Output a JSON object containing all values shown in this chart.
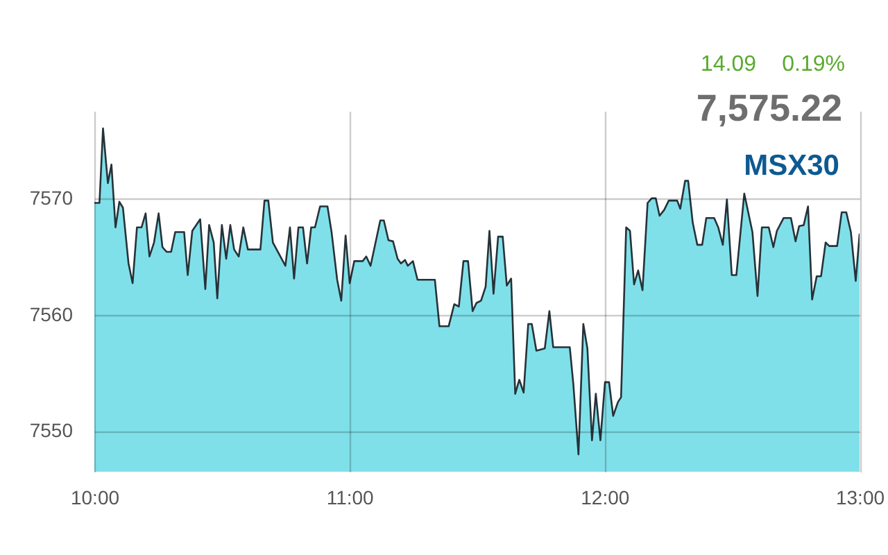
{
  "chart_data": {
    "type": "area",
    "title": "MSX30",
    "subtitle": "7,575.22",
    "annotations": [
      "14.09",
      "0.19%"
    ],
    "color": "#80e0ea",
    "x": [
      10.0,
      10.02,
      10.034,
      10.053,
      10.067,
      10.083,
      10.098,
      10.112,
      10.134,
      10.15,
      10.167,
      10.185,
      10.201,
      10.216,
      10.234,
      10.252,
      10.267,
      10.283,
      10.301,
      10.317,
      10.352,
      10.366,
      10.384,
      10.415,
      10.435,
      10.45,
      10.468,
      10.482,
      10.5,
      10.517,
      10.533,
      10.548,
      10.566,
      10.584,
      10.602,
      10.651,
      10.667,
      10.682,
      10.7,
      10.749,
      10.767,
      10.783,
      10.8,
      10.818,
      10.834,
      10.85,
      10.865,
      10.885,
      10.914,
      10.93,
      10.952,
      10.968,
      10.985,
      11.001,
      11.019,
      11.052,
      11.066,
      11.083,
      11.121,
      11.135,
      11.153,
      11.171,
      11.189,
      11.202,
      11.218,
      11.229,
      11.249,
      11.267,
      11.335,
      11.353,
      11.389,
      11.411,
      11.429,
      11.447,
      11.465,
      11.483,
      11.498,
      11.516,
      11.534,
      11.549,
      11.565,
      11.583,
      11.601,
      11.617,
      11.634,
      11.65,
      11.666,
      11.683,
      11.701,
      11.715,
      11.733,
      11.766,
      11.784,
      11.799,
      11.864,
      11.878,
      11.898,
      11.917,
      11.933,
      11.951,
      11.966,
      11.984,
      12.002,
      12.018,
      12.034,
      12.053,
      12.065,
      12.085,
      12.1,
      12.116,
      12.132,
      12.149,
      12.169,
      12.185,
      12.201,
      12.216,
      12.234,
      12.252,
      12.285,
      12.297,
      12.316,
      12.328,
      12.346,
      12.364,
      12.383,
      12.399,
      12.43,
      12.446,
      12.464,
      12.48,
      12.499,
      12.517,
      12.548,
      12.58,
      12.6,
      12.617,
      12.644,
      12.662,
      12.676,
      12.702,
      12.731,
      12.749,
      12.763,
      12.781,
      12.798,
      12.814,
      12.832,
      12.849,
      12.867,
      12.881,
      12.912,
      12.93,
      12.948,
      12.966,
      12.985,
      13.0
    ],
    "values": [
      7569.6,
      7569.6,
      7576.0,
      7571.3,
      7572.9,
      7567.5,
      7569.7,
      7569.2,
      7564.4,
      7562.7,
      7567.5,
      7567.5,
      7568.7,
      7565.0,
      7566.2,
      7568.7,
      7565.8,
      7565.4,
      7565.4,
      7567.1,
      7567.1,
      7563.4,
      7567.2,
      7568.2,
      7562.2,
      7567.7,
      7566.2,
      7561.4,
      7567.7,
      7564.8,
      7567.7,
      7565.6,
      7565.0,
      7567.5,
      7565.6,
      7565.6,
      7569.8,
      7569.8,
      7566.2,
      7564.2,
      7567.5,
      7563.1,
      7567.5,
      7567.5,
      7564.4,
      7567.5,
      7567.5,
      7569.3,
      7569.3,
      7567.1,
      7563.0,
      7561.2,
      7566.8,
      7562.7,
      7564.6,
      7564.6,
      7565.0,
      7564.2,
      7568.1,
      7568.1,
      7566.4,
      7566.3,
      7564.8,
      7564.4,
      7564.7,
      7564.2,
      7564.6,
      7563.0,
      7563.0,
      7559.0,
      7559.0,
      7560.9,
      7560.7,
      7564.6,
      7564.6,
      7560.3,
      7561.0,
      7561.2,
      7562.4,
      7567.2,
      7561.8,
      7566.7,
      7566.7,
      7562.5,
      7563.1,
      7553.2,
      7554.4,
      7553.3,
      7559.2,
      7559.2,
      7556.9,
      7557.1,
      7560.3,
      7557.2,
      7557.2,
      7554.0,
      7548.0,
      7559.2,
      7557.1,
      7549.2,
      7553.2,
      7549.2,
      7554.2,
      7554.2,
      7551.3,
      7552.5,
      7552.9,
      7567.5,
      7567.2,
      7562.6,
      7563.8,
      7562.1,
      7569.6,
      7570.0,
      7570.0,
      7568.5,
      7569.0,
      7569.8,
      7569.8,
      7569.1,
      7571.5,
      7571.5,
      7567.9,
      7566.0,
      7566.0,
      7568.3,
      7568.3,
      7567.5,
      7566.0,
      7569.9,
      7563.4,
      7563.4,
      7570.4,
      7567.1,
      7561.6,
      7567.5,
      7567.5,
      7565.8,
      7567.2,
      7568.3,
      7568.3,
      7566.3,
      7567.6,
      7567.7,
      7569.3,
      7561.3,
      7563.3,
      7563.3,
      7566.2,
      7565.9,
      7565.9,
      7568.8,
      7568.8,
      7567.1,
      7562.9,
      7566.9
    ],
    "xlim": [
      10,
      13
    ],
    "xticks": [
      {
        "value": 10,
        "label": "10:00"
      },
      {
        "value": 11,
        "label": "11:00"
      },
      {
        "value": 12,
        "label": "12:00"
      },
      {
        "value": 13,
        "label": "13:00"
      }
    ],
    "ylim": [
      7546.5,
      7577.5
    ],
    "yticks": [
      7550,
      7560,
      7570
    ],
    "grid": true
  }
}
